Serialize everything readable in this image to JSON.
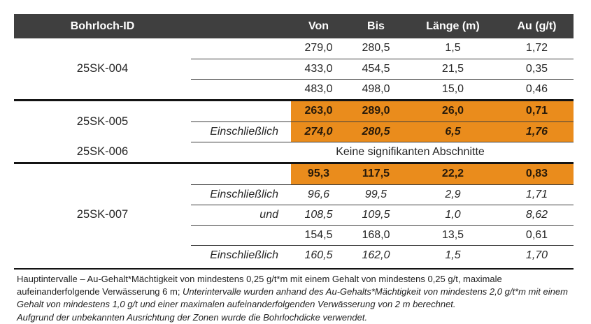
{
  "colors": {
    "header_bg": "#3F3F3F",
    "header_text": "#FFFFFF",
    "highlight_orange": "#EA8C1C",
    "highlight_text": "#26190A",
    "rule_thick": "#141414",
    "rule_thin": "#3D3D3D",
    "body_text": "#272727"
  },
  "table": {
    "header": {
      "bohrloch_id": "Bohrloch-ID",
      "von": "Von",
      "bis": "Bis",
      "laenge": "Länge (m)",
      "au": "Au (g/t)"
    },
    "groups": [
      {
        "id": "25SK-004",
        "separator_before": "none",
        "rows": [
          {
            "qualifier": "",
            "von": "279,0",
            "bis": "280,5",
            "laenge": "1,5",
            "au": "1,72",
            "highlight": false,
            "italic": false
          },
          {
            "qualifier": "",
            "von": "433,0",
            "bis": "454,5",
            "laenge": "21,5",
            "au": "0,35",
            "highlight": false,
            "italic": false
          },
          {
            "qualifier": "",
            "von": "483,0",
            "bis": "498,0",
            "laenge": "15,0",
            "au": "0,46",
            "highlight": false,
            "italic": false
          }
        ]
      },
      {
        "id": "25SK-005",
        "separator_before": "thick",
        "partial_bottom": true,
        "rows": [
          {
            "qualifier": "",
            "von": "263,0",
            "bis": "289,0",
            "laenge": "26,0",
            "au": "0,71",
            "highlight": true,
            "italic": false
          },
          {
            "qualifier": "Einschließlich",
            "von": "274,0",
            "bis": "280,5",
            "laenge": "6,5",
            "au": "1,76",
            "highlight": true,
            "italic": true
          }
        ]
      },
      {
        "id": "25SK-006",
        "separator_before": "none",
        "no_intervals": "Keine signifikanten Abschnitte"
      },
      {
        "id": "25SK-007",
        "separator_before": "thick",
        "rows": [
          {
            "qualifier": "",
            "von": "95,3",
            "bis": "117,5",
            "laenge": "22,2",
            "au": "0,83",
            "highlight": true,
            "italic": false
          },
          {
            "qualifier": "Einschließlich",
            "von": "96,6",
            "bis": "99,5",
            "laenge": "2,9",
            "au": "1,71",
            "highlight": false,
            "italic": true
          },
          {
            "qualifier": "und",
            "von": "108,5",
            "bis": "109,5",
            "laenge": "1,0",
            "au": "8,62",
            "highlight": false,
            "italic": true
          },
          {
            "qualifier": "",
            "von": "154,5",
            "bis": "168,0",
            "laenge": "13,5",
            "au": "0,61",
            "highlight": false,
            "italic": false
          },
          {
            "qualifier": "Einschließlich",
            "von": "160,5",
            "bis": "162,0",
            "laenge": "1,5",
            "au": "1,70",
            "highlight": false,
            "italic": true
          }
        ]
      }
    ]
  },
  "footnote": {
    "part1_regular": "Hauptintervalle – Au-Gehalt*Mächtigkeit von mindestens 0,25 g/t*m mit einem Gehalt von mindestens 0,25 g/t, maximale aufeinanderfolgende Verwässerung 6 m; ",
    "part2_italic": "Unterintervalle wurden anhand des Au-Gehalts*Mächtigkeit von mindestens 2,0 g/t*m mit einem Gehalt von mindestens 1,0 g/t und einer maximalen aufeinanderfolgenden Verwässerung von 2 m berechnet.",
    "part3_italic": "Aufgrund der unbekannten Ausrichtung der Zonen wurde die Bohrlochdicke verwendet."
  }
}
